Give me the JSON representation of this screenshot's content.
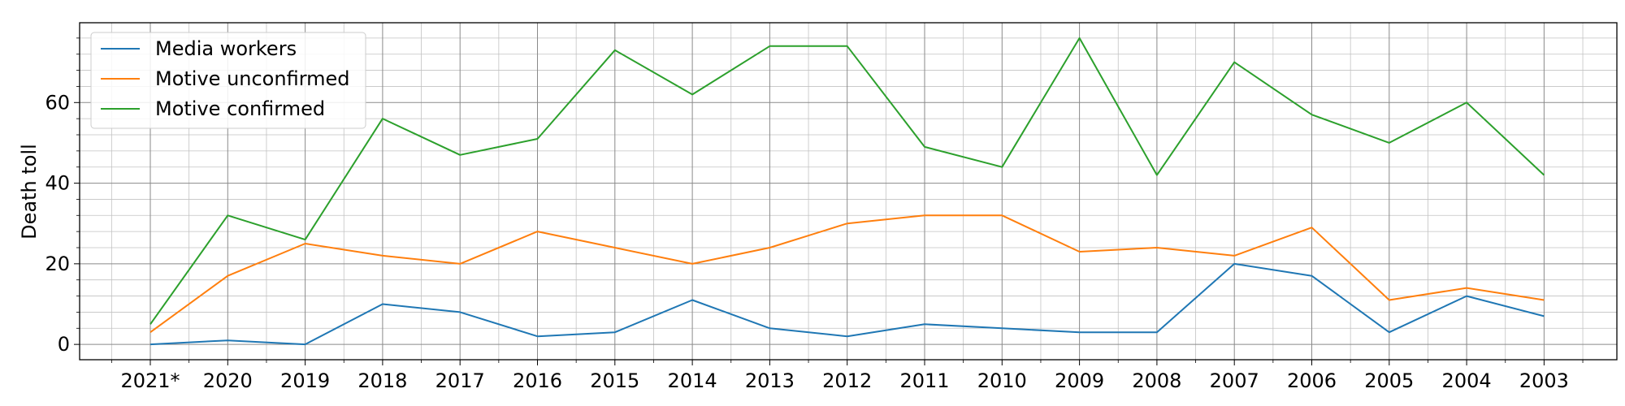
{
  "chart_data": {
    "type": "line",
    "categories": [
      "2021*",
      "2020",
      "2019",
      "2018",
      "2017",
      "2016",
      "2015",
      "2014",
      "2013",
      "2012",
      "2011",
      "2010",
      "2009",
      "2008",
      "2007",
      "2006",
      "2005",
      "2004",
      "2003"
    ],
    "series": [
      {
        "name": "Media workers",
        "color": "#1f77b4",
        "values": [
          0,
          1,
          0,
          10,
          8,
          2,
          3,
          11,
          4,
          2,
          5,
          4,
          3,
          3,
          20,
          17,
          3,
          12,
          7
        ]
      },
      {
        "name": "Motive unconfirmed",
        "color": "#ff7f0e",
        "values": [
          3,
          17,
          25,
          22,
          20,
          28,
          24,
          20,
          24,
          30,
          32,
          32,
          23,
          24,
          22,
          29,
          11,
          14,
          11
        ]
      },
      {
        "name": "Motive confirmed",
        "color": "#2ca02c",
        "values": [
          5,
          32,
          26,
          56,
          47,
          51,
          73,
          62,
          74,
          74,
          49,
          44,
          76,
          42,
          70,
          57,
          50,
          60,
          42
        ]
      }
    ],
    "xlabel": "",
    "ylabel": "Death toll",
    "ylim": [
      -3.8,
      79.8
    ],
    "yticks": [
      0,
      20,
      40,
      60
    ],
    "grid": true,
    "minor_grid": true,
    "legend_position": "top-left"
  }
}
